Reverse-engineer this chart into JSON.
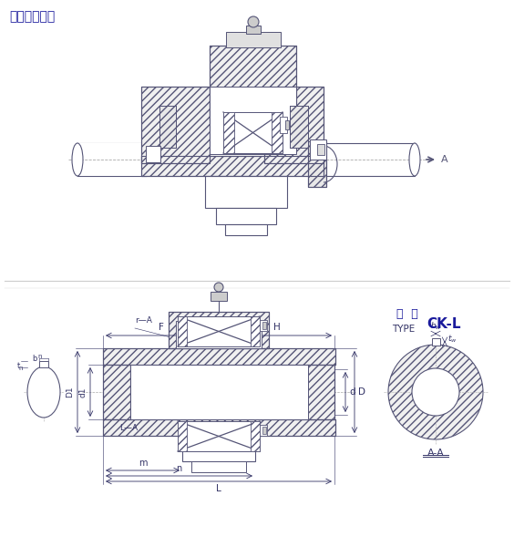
{
  "title_top": "安装参考范例",
  "title_type": "型  号",
  "title_type_en": "TYPE",
  "title_model": "CK-L",
  "label_AA": "A-A",
  "label_A_arrow": "A",
  "label_rA": "r—A",
  "label_lA": "L—A",
  "line_color": "#555577",
  "bg_color": "#ffffff",
  "title_color": "#1a1a9c",
  "dim_color": "#333366",
  "hatch_color": "#666688"
}
